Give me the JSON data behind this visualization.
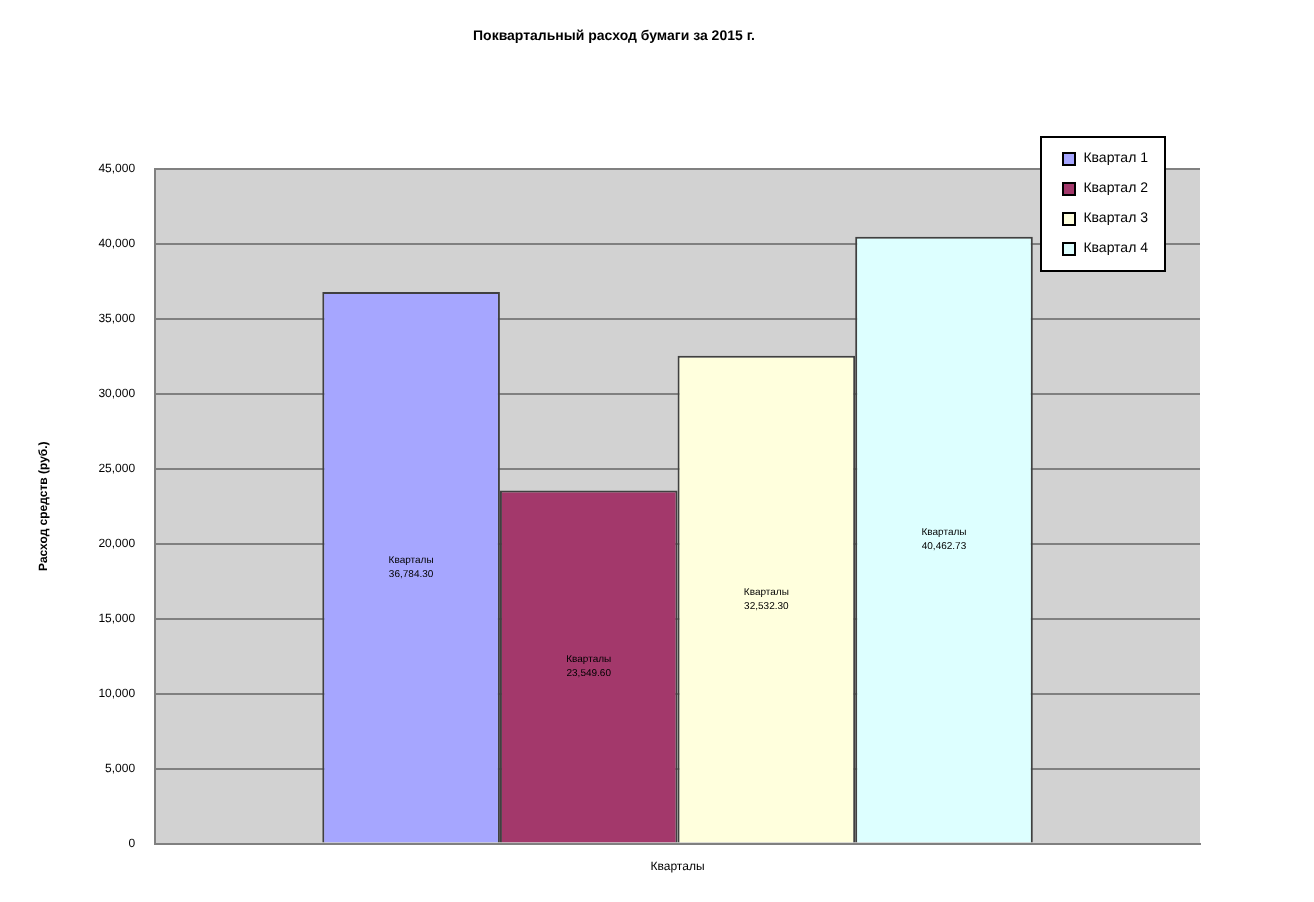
{
  "chart_data": {
    "type": "bar",
    "title": "Поквартальный расход бумаги за 2015 г.",
    "ylabel": "Расход средств (руб.)",
    "categories": [
      "Кварталы"
    ],
    "series": [
      {
        "name": "Квартал 1",
        "color": "#a6a6ff",
        "values": [
          36784.3
        ],
        "value_labels": [
          "36,784.30"
        ]
      },
      {
        "name": "Квартал 2",
        "color": "#a3386b",
        "values": [
          23549.6
        ],
        "value_labels": [
          "23,549.60"
        ]
      },
      {
        "name": "Квартал 3",
        "color": "#ffffdd",
        "values": [
          32532.3
        ],
        "value_labels": [
          "32,532.30"
        ]
      },
      {
        "name": "Квартал 4",
        "color": "#ddffff",
        "values": [
          40462.73
        ],
        "value_labels": [
          "40,462.73"
        ]
      }
    ],
    "ylim": [
      0,
      45000
    ],
    "yticks": [
      0,
      {
        "value": 5000,
        "label": "5,000"
      },
      {
        "value": 10000,
        "label": "10,000"
      },
      {
        "value": 15000,
        "label": "15,000"
      },
      {
        "value": 20000,
        "label": "20,000"
      },
      {
        "value": 25000,
        "label": "25,000"
      },
      {
        "value": 30000,
        "label": "30,000"
      },
      {
        "value": 35000,
        "label": "35,000"
      },
      {
        "value": 40000,
        "label": "40,000"
      },
      {
        "value": 45000,
        "label": "45,000"
      }
    ],
    "grid": "y",
    "legend": "top right"
  }
}
